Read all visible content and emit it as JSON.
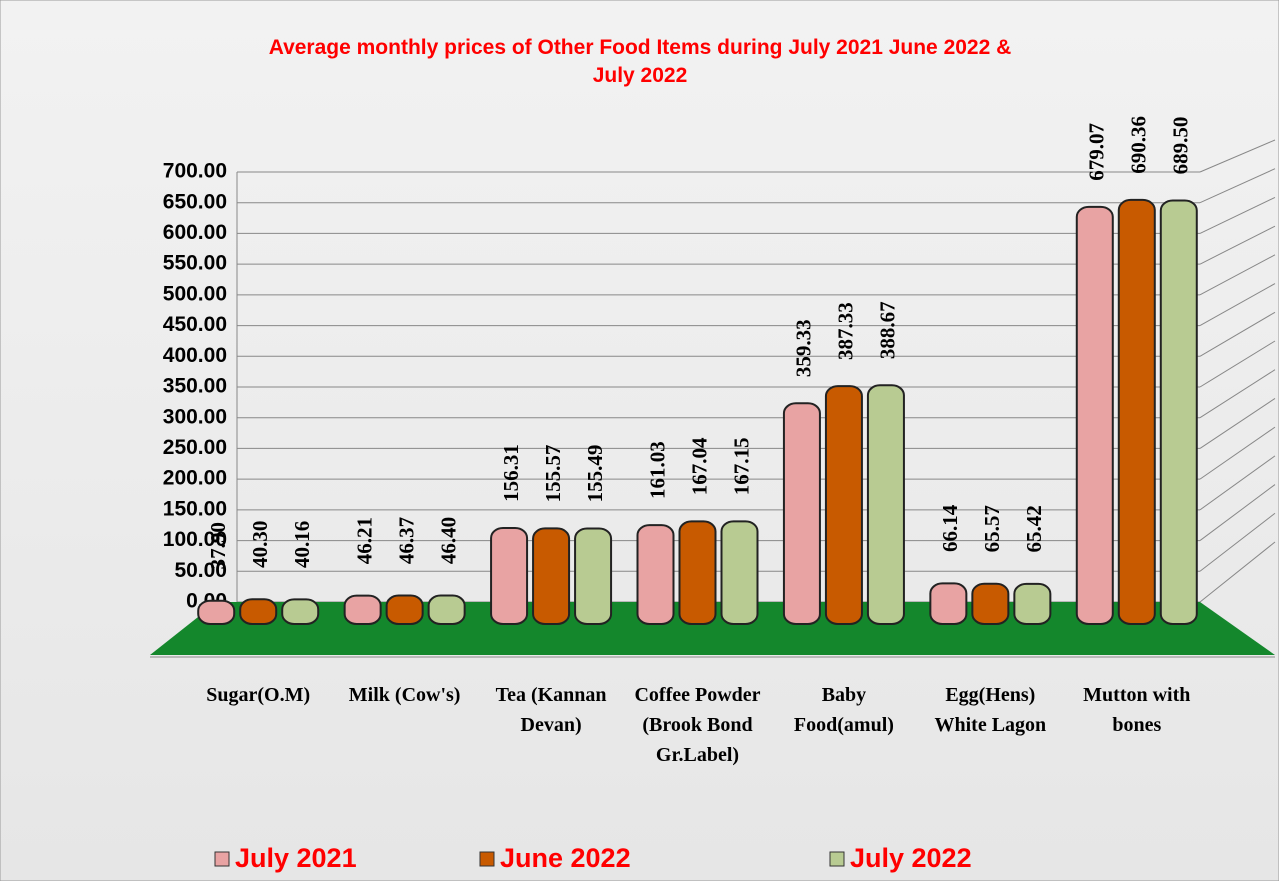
{
  "chart_data": {
    "type": "bar",
    "title": "Average monthly prices of Other Food Items during  July 2021  June  2022 &  July  2022",
    "categories": [
      "Sugar(O.M)",
      "Milk (Cow's)",
      "Tea (Kannan Devan)",
      "Coffee Powder (Brook Bond Gr.Label)",
      "Baby Food(amul)",
      "Egg(Hens) White Lagon",
      "Mutton with bones"
    ],
    "series": [
      {
        "name": "July 2021",
        "color": "#e8a3a3",
        "values": [
          37.9,
          46.21,
          156.31,
          161.03,
          359.33,
          66.14,
          679.07
        ],
        "value_labels": [
          "37.90",
          "46.21",
          "156.31",
          "161.03",
          "359.33",
          "66.14",
          "679.07"
        ]
      },
      {
        "name": "June 2022",
        "color": "#c85a00",
        "values": [
          40.3,
          46.37,
          155.57,
          167.04,
          387.33,
          65.57,
          690.36
        ],
        "value_labels": [
          "40.30",
          "46.37",
          "155.57",
          "167.04",
          "387.33",
          "65.57",
          "690.36"
        ]
      },
      {
        "name": "July 2022",
        "color": "#b8cb92",
        "values": [
          40.16,
          46.4,
          155.49,
          167.15,
          388.67,
          65.42,
          689.5
        ],
        "value_labels": [
          "40.16",
          "46.40",
          "155.49",
          "167.15",
          "388.67",
          "65.42",
          "689.50"
        ]
      }
    ],
    "ylim": [
      0,
      700
    ],
    "yticks": [
      {
        "value": 0,
        "label": "0.00"
      },
      {
        "value": 50,
        "label": "50.00"
      },
      {
        "value": 100,
        "label": "100.00"
      },
      {
        "value": 150,
        "label": "150.00"
      },
      {
        "value": 200,
        "label": "200.00"
      },
      {
        "value": 250,
        "label": "250.00"
      },
      {
        "value": 300,
        "label": "300.00"
      },
      {
        "value": 350,
        "label": "350.00"
      },
      {
        "value": 400,
        "label": "400.00"
      },
      {
        "value": 450,
        "label": "450.00"
      },
      {
        "value": 500,
        "label": "500.00"
      },
      {
        "value": 550,
        "label": "550.00"
      },
      {
        "value": 600,
        "label": "600.00"
      },
      {
        "value": 650,
        "label": "650.00"
      },
      {
        "value": 700,
        "label": "700.00"
      }
    ],
    "grid": true,
    "floor_color": "#14872c",
    "title_color": "#ff0000",
    "legend": "bottom"
  }
}
